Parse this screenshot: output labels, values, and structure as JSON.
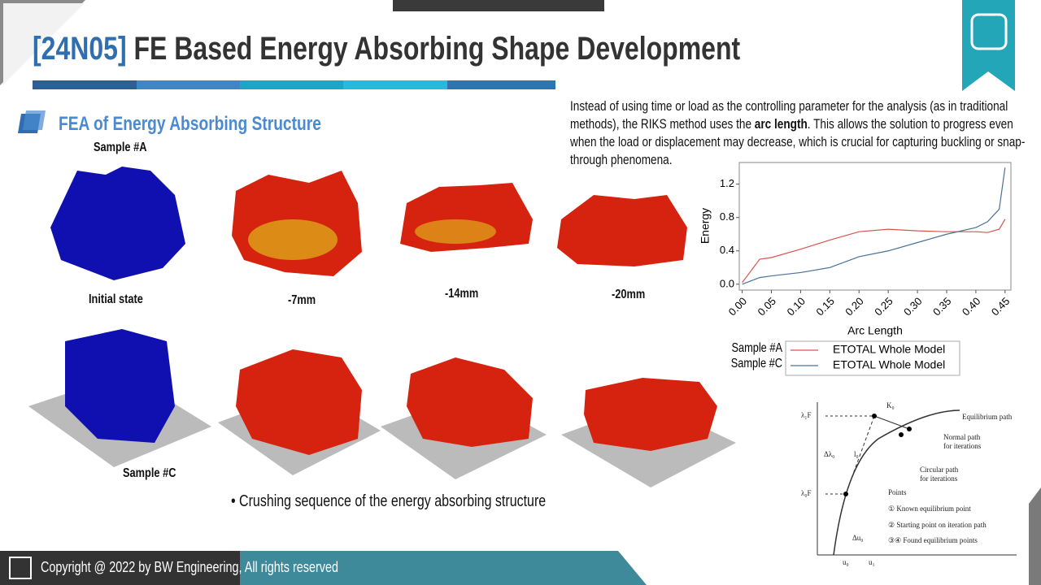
{
  "header": {
    "code": "[24N05]",
    "title": "FE Based Energy Absorbing Shape Development"
  },
  "section": {
    "title": "FEA of Energy Absorbing Structure"
  },
  "description": {
    "before": "Instead of using time or load as the controlling parameter for the analysis (as in traditional methods), the RIKS method uses the ",
    "bold": "arc length",
    "after": ". This allows the solution to progress even when the load or displacement may decrease, which is crucial for capturing buckling or snap-through phenomena."
  },
  "samples": {
    "a": "Sample #A",
    "c": "Sample #C"
  },
  "stages": [
    "Initial state",
    "-7mm",
    "-14mm",
    "-20mm"
  ],
  "caption": "• Crushing sequence of the energy absorbing structure",
  "chart_data": {
    "type": "line",
    "x_label": "Arc Length",
    "y_label": "Energy",
    "x": [
      0,
      0.03,
      0.05,
      0.1,
      0.15,
      0.2,
      0.25,
      0.3,
      0.35,
      0.4,
      0.42,
      0.44,
      0.45
    ],
    "series": [
      {
        "name": "ETOTAL Whole Model",
        "color": "#d9534f",
        "values": [
          0.02,
          0.3,
          0.32,
          0.42,
          0.53,
          0.63,
          0.66,
          0.64,
          0.63,
          0.63,
          0.62,
          0.66,
          0.78
        ]
      },
      {
        "name": "ETOTAL Whole Model",
        "color": "#4a7196",
        "values": [
          0,
          0.08,
          0.1,
          0.14,
          0.2,
          0.33,
          0.4,
          0.5,
          0.6,
          0.68,
          0.75,
          0.9,
          1.4
        ]
      }
    ],
    "xlim": [
      -0.005,
      0.46
    ],
    "ylim": [
      -0.07,
      1.46
    ],
    "xticks": [
      {
        "value": 0,
        "label": "0.00"
      },
      {
        "value": 0.05,
        "label": "0.05"
      },
      {
        "value": 0.1,
        "label": "0.10"
      },
      {
        "value": 0.15,
        "label": "0.15"
      },
      {
        "value": 0.2,
        "label": "0.20"
      },
      {
        "value": 0.25,
        "label": "0.25"
      },
      {
        "value": 0.3,
        "label": "0.30"
      },
      {
        "value": 0.35,
        "label": "0.35"
      },
      {
        "value": 0.4,
        "label": "0.40"
      },
      {
        "value": 0.45,
        "label": "0.45"
      }
    ],
    "yticks": [
      {
        "value": 0,
        "label": "0.0"
      },
      0.4,
      0.8,
      1.2
    ],
    "grid": false,
    "legend": "below"
  },
  "legend_prefixes": [
    "Sample #A",
    "Sample #C"
  ],
  "diagram": {
    "l1F": "λ₁F",
    "l0F": "λ₀F",
    "dl0": "Δλ₀",
    "len": "l₀",
    "k0": "K₀",
    "du0": "Δu₀",
    "u0": "u₀",
    "u1": "u₁",
    "eq": "Equilibrium path",
    "normal": [
      "Normal path",
      "for iterations"
    ],
    "circular": [
      "Circular path",
      "for iterations"
    ],
    "points": "Points",
    "p1": "① Known equilibrium point",
    "p2": "② Starting point on iteration path",
    "p34": "③④ Found equilibrium points"
  },
  "footer": {
    "copyright": "Copyright @ 2022 by BW Engineering,  All rights reserved"
  }
}
